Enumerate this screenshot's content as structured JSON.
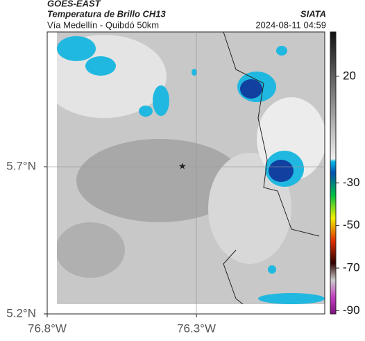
{
  "header": {
    "satellite": "GOES-EAST",
    "product": "Temperatura de Brillo CH13",
    "source": "SIATA",
    "route": "Vía Medellín - Quibdó 50km",
    "timestamp": "2024-08-11 04:59"
  },
  "map": {
    "lon_lim": [
      -76.8,
      -75.87
    ],
    "lat_lim": [
      5.2,
      6.158
    ],
    "lon_ticks": [
      {
        "value": -76.8,
        "label": "76.8°W"
      },
      {
        "value": -76.3,
        "label": "76.3°W"
      }
    ],
    "lat_ticks": [
      {
        "value": 5.7,
        "label": "5.7°N"
      },
      {
        "value": 5.2,
        "label": "5.2°N"
      }
    ],
    "grid": true,
    "marker": {
      "lon": -76.347,
      "lat": 5.7
    }
  },
  "colorbar": {
    "lim": [
      -91.5,
      40.8
    ],
    "ticks": [
      20,
      -30,
      -50,
      -70,
      -90
    ]
  }
}
